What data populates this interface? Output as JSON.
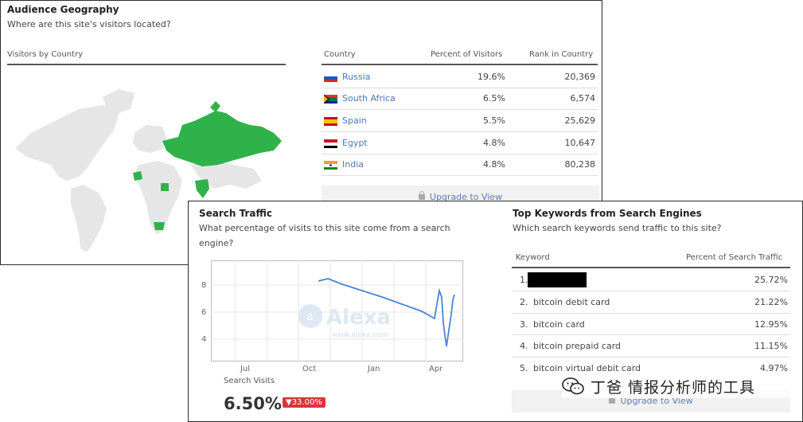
{
  "geography": {
    "title": "Audience Geography",
    "subtitle": "Where are this site's visitors located?",
    "map_label": "Visitors by Country",
    "highlight_color": "#2fb24a",
    "columns": [
      "Country",
      "Percent of Visitors",
      "Rank in Country"
    ],
    "rows": [
      {
        "country": "Russia",
        "percent": "19.6%",
        "rank": "20,369",
        "flag": "russia-flag"
      },
      {
        "country": "South Africa",
        "percent": "6.5%",
        "rank": "6,574",
        "flag": "south-africa-flag"
      },
      {
        "country": "Spain",
        "percent": "5.5%",
        "rank": "25,629",
        "flag": "spain-flag"
      },
      {
        "country": "Egypt",
        "percent": "4.8%",
        "rank": "10,647",
        "flag": "egypt-flag"
      },
      {
        "country": "India",
        "percent": "4.8%",
        "rank": "80,238",
        "flag": "india-flag"
      }
    ],
    "upgrade": "Upgrade to View"
  },
  "search_traffic": {
    "title": "Search Traffic",
    "subtitle_line1": "What percentage of visits to this site come from a search",
    "subtitle_line2": "engine?",
    "y_ticks": [
      "8",
      "6",
      "4"
    ],
    "x_ticks": [
      "Jul",
      "Oct",
      "Jan",
      "Apr"
    ],
    "watermark": "Alexa",
    "watermark_url": "www.alexa.com",
    "metric_label": "Search Visits",
    "metric_value": "6.50%",
    "change": "▼33.00%",
    "line_color": "#4a86d4"
  },
  "keywords": {
    "title": "Top Keywords from Search Engines",
    "subtitle": "Which search keywords send traffic to this site?",
    "columns": [
      "Keyword",
      "Percent of Search Traffic"
    ],
    "rows": [
      {
        "index": "1.",
        "keyword": "",
        "percent": "25.72%",
        "redacted": true
      },
      {
        "index": "2.",
        "keyword": "bitcoin debit card",
        "percent": "21.22%"
      },
      {
        "index": "3.",
        "keyword": "bitcoin card",
        "percent": "12.95%"
      },
      {
        "index": "4.",
        "keyword": "bitcoin prepaid card",
        "percent": "11.15%"
      },
      {
        "index": "5.",
        "keyword": "bitcoin virtual debit card",
        "percent": "4.97%"
      }
    ],
    "upgrade": "Upgrade to View"
  },
  "watermark": {
    "icon": "wechat-icon",
    "text": "丁爸 情报分析师的工具"
  }
}
